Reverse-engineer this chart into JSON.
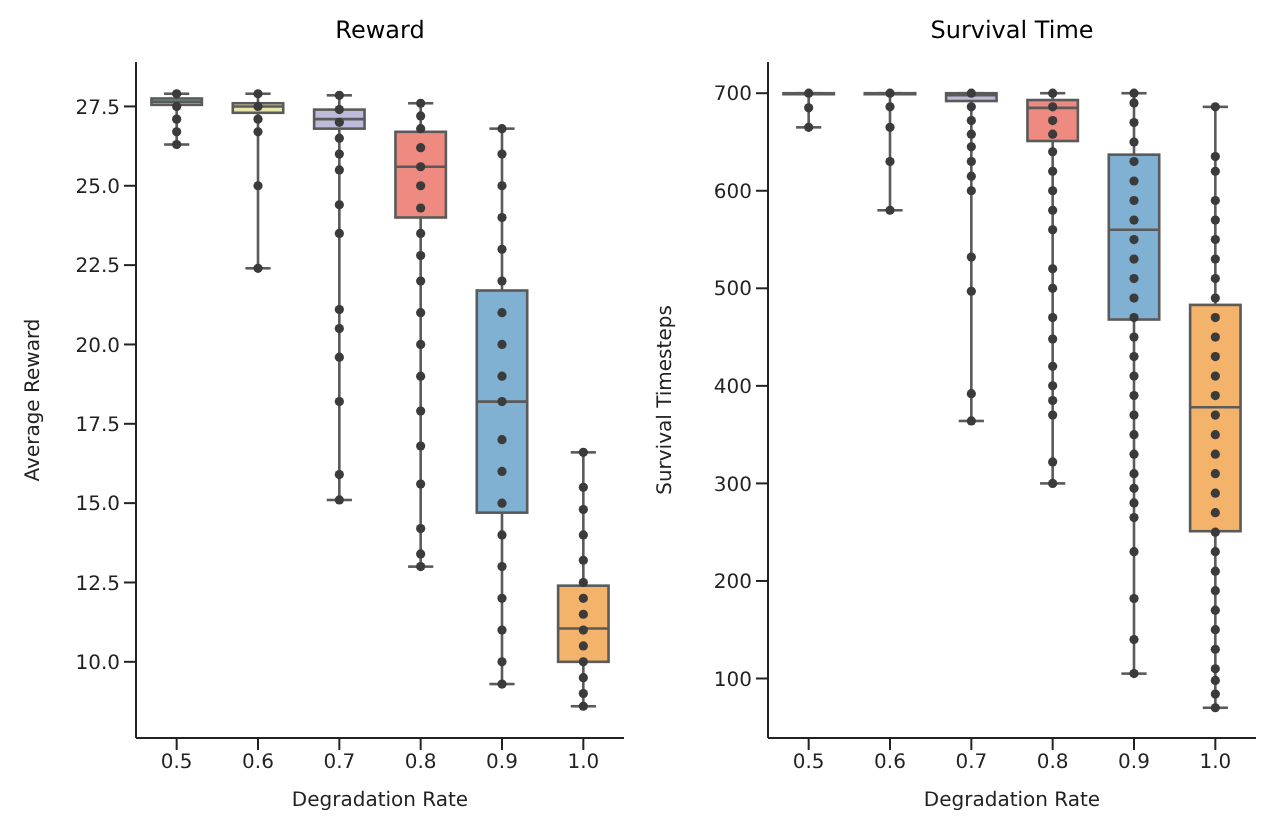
{
  "chart_data": [
    {
      "type": "box",
      "title": "Reward",
      "xlabel": "Degradation Rate",
      "ylabel": "Average Reward",
      "categories": [
        "0.5",
        "0.6",
        "0.7",
        "0.8",
        "0.9",
        "1.0"
      ],
      "colors": [
        "#8dd3c7",
        "#e8e6a8",
        "#bebada",
        "#ef8a80",
        "#80b1d3",
        "#f4b36a"
      ],
      "ylim": [
        7.6,
        28.9
      ],
      "yticks": [
        {
          "value": 10,
          "label": "10.0"
        },
        12.5,
        {
          "value": 15,
          "label": "15.0"
        },
        17.5,
        {
          "value": 20,
          "label": "20.0"
        },
        22.5,
        {
          "value": 25,
          "label": "25.0"
        },
        27.5
      ],
      "boxes": [
        {
          "low": 26.3,
          "q1": 27.55,
          "median": 27.65,
          "q3": 27.75,
          "high": 27.9
        },
        {
          "low": 22.4,
          "q1": 27.3,
          "median": 27.5,
          "q3": 27.6,
          "high": 27.9
        },
        {
          "low": 15.1,
          "q1": 26.8,
          "median": 27.1,
          "q3": 27.4,
          "high": 27.85
        },
        {
          "low": 13.0,
          "q1": 24.0,
          "median": 25.6,
          "q3": 26.7,
          "high": 27.6
        },
        {
          "low": 9.3,
          "q1": 14.7,
          "median": 18.2,
          "q3": 21.7,
          "high": 26.8
        },
        {
          "low": 8.6,
          "q1": 10.0,
          "median": 11.05,
          "q3": 12.4,
          "high": 16.6
        }
      ],
      "series": [
        {
          "type": "scatter",
          "color": "#3b3b3b",
          "x": [
            "0.5",
            "0.5",
            "0.5",
            "0.5",
            "0.5",
            "0.6",
            "0.6",
            "0.6",
            "0.6",
            "0.6",
            "0.6",
            "0.7",
            "0.7",
            "0.7",
            "0.7",
            "0.7",
            "0.7",
            "0.7",
            "0.7",
            "0.7",
            "0.7",
            "0.7",
            "0.7",
            "0.7",
            "0.7",
            "0.8",
            "0.8",
            "0.8",
            "0.8",
            "0.8",
            "0.8",
            "0.8",
            "0.8",
            "0.8",
            "0.8",
            "0.8",
            "0.8",
            "0.8",
            "0.8",
            "0.8",
            "0.8",
            "0.8",
            "0.8",
            "0.8",
            "0.9",
            "0.9",
            "0.9",
            "0.9",
            "0.9",
            "0.9",
            "0.9",
            "0.9",
            "0.9",
            "0.9",
            "0.9",
            "0.9",
            "0.9",
            "0.9",
            "0.9",
            "0.9",
            "0.9",
            "0.9",
            "0.9",
            "1.0",
            "1.0",
            "1.0",
            "1.0",
            "1.0",
            "1.0",
            "1.0",
            "1.0",
            "1.0",
            "1.0",
            "1.0",
            "1.0",
            "1.0",
            "1.0"
          ],
          "values": [
            27.9,
            27.5,
            27.1,
            26.7,
            26.3,
            27.9,
            27.5,
            27.1,
            26.7,
            25.0,
            22.4,
            27.85,
            27.4,
            27.0,
            26.5,
            26.0,
            25.5,
            24.4,
            23.5,
            21.1,
            20.5,
            19.6,
            18.2,
            15.9,
            15.1,
            27.6,
            27.2,
            26.8,
            26.2,
            25.6,
            25.0,
            24.3,
            23.5,
            22.8,
            22.0,
            21.0,
            20.0,
            19.0,
            17.9,
            16.8,
            15.6,
            14.2,
            13.4,
            13.0,
            26.8,
            26.0,
            25.0,
            24.0,
            23.0,
            22.0,
            21.0,
            20.0,
            19.0,
            18.2,
            17.0,
            16.0,
            15.0,
            14.0,
            13.0,
            12.0,
            11.0,
            10.0,
            9.3,
            16.6,
            15.5,
            14.8,
            14.0,
            13.2,
            12.5,
            12.0,
            11.5,
            11.0,
            10.5,
            10.0,
            9.5,
            9.0,
            8.6
          ]
        }
      ]
    },
    {
      "type": "box",
      "title": "Survival Time",
      "xlabel": "Degradation Rate",
      "ylabel": "Survival Timesteps",
      "categories": [
        "0.5",
        "0.6",
        "0.7",
        "0.8",
        "0.9",
        "1.0"
      ],
      "colors": [
        "#8dd3c7",
        "#e8e6a8",
        "#bebada",
        "#ef8a80",
        "#80b1d3",
        "#f4b36a"
      ],
      "ylim": [
        39,
        732
      ],
      "yticks": [
        100,
        200,
        300,
        400,
        500,
        600,
        700
      ],
      "boxes": [
        {
          "low": 665,
          "q1": 699,
          "median": 700,
          "q3": 700,
          "high": 700
        },
        {
          "low": 580,
          "q1": 699,
          "median": 700,
          "q3": 700,
          "high": 700
        },
        {
          "low": 364,
          "q1": 692,
          "median": 698,
          "q3": 700,
          "high": 700
        },
        {
          "low": 300,
          "q1": 651,
          "median": 685,
          "q3": 693,
          "high": 700
        },
        {
          "low": 105,
          "q1": 468,
          "median": 560,
          "q3": 637,
          "high": 700
        },
        {
          "low": 70,
          "q1": 251,
          "median": 378,
          "q3": 483,
          "high": 686
        }
      ],
      "series": [
        {
          "type": "scatter",
          "color": "#3b3b3b",
          "x": [
            "0.5",
            "0.5",
            "0.5",
            "0.6",
            "0.6",
            "0.6",
            "0.6",
            "0.6",
            "0.7",
            "0.7",
            "0.7",
            "0.7",
            "0.7",
            "0.7",
            "0.7",
            "0.7",
            "0.7",
            "0.7",
            "0.7",
            "0.7",
            "0.8",
            "0.8",
            "0.8",
            "0.8",
            "0.8",
            "0.8",
            "0.8",
            "0.8",
            "0.8",
            "0.8",
            "0.8",
            "0.8",
            "0.8",
            "0.8",
            "0.8",
            "0.8",
            "0.8",
            "0.8",
            "0.8",
            "0.9",
            "0.9",
            "0.9",
            "0.9",
            "0.9",
            "0.9",
            "0.9",
            "0.9",
            "0.9",
            "0.9",
            "0.9",
            "0.9",
            "0.9",
            "0.9",
            "0.9",
            "0.9",
            "0.9",
            "0.9",
            "0.9",
            "0.9",
            "0.9",
            "0.9",
            "0.9",
            "0.9",
            "0.9",
            "0.9",
            "0.9",
            "0.9",
            "1.0",
            "1.0",
            "1.0",
            "1.0",
            "1.0",
            "1.0",
            "1.0",
            "1.0",
            "1.0",
            "1.0",
            "1.0",
            "1.0",
            "1.0",
            "1.0",
            "1.0",
            "1.0",
            "1.0",
            "1.0",
            "1.0",
            "1.0",
            "1.0",
            "1.0",
            "1.0",
            "1.0",
            "1.0",
            "1.0",
            "1.0",
            "1.0",
            "1.0",
            "1.0",
            "1.0"
          ],
          "values": [
            700,
            685,
            665,
            700,
            686,
            665,
            630,
            580,
            700,
            686,
            672,
            658,
            645,
            630,
            615,
            600,
            532,
            497,
            392,
            364,
            700,
            686,
            672,
            658,
            640,
            620,
            600,
            580,
            560,
            520,
            500,
            470,
            448,
            420,
            400,
            385,
            370,
            322,
            300,
            700,
            690,
            670,
            650,
            630,
            610,
            590,
            570,
            550,
            530,
            510,
            490,
            470,
            450,
            430,
            410,
            390,
            370,
            350,
            330,
            310,
            295,
            280,
            265,
            230,
            182,
            140,
            105,
            686,
            635,
            620,
            590,
            570,
            550,
            530,
            510,
            490,
            470,
            450,
            430,
            410,
            390,
            370,
            350,
            330,
            310,
            290,
            270,
            250,
            230,
            210,
            190,
            170,
            150,
            130,
            110,
            98,
            84,
            70
          ]
        }
      ]
    }
  ]
}
